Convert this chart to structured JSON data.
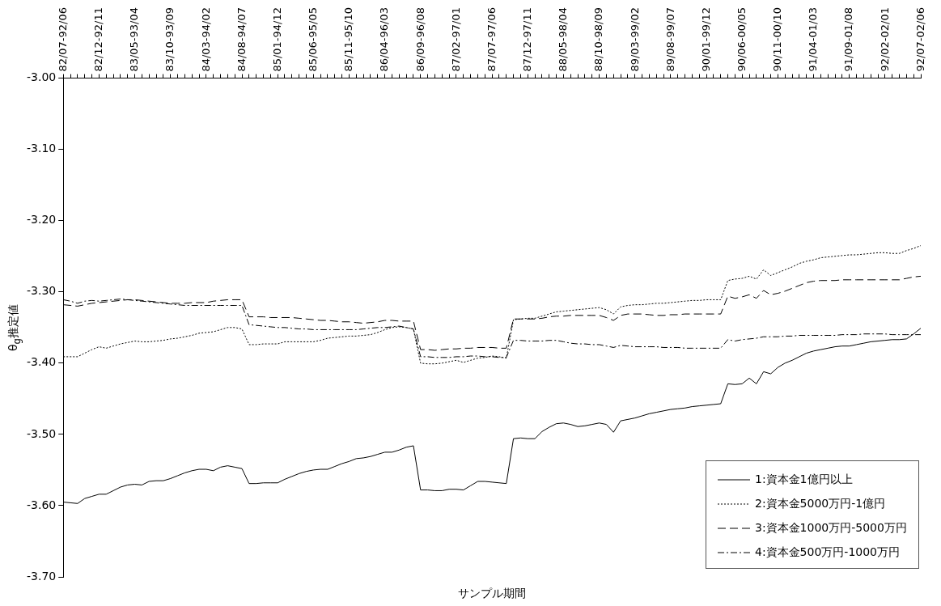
{
  "chart_data": {
    "type": "line",
    "xlabel": "サンプル期間",
    "ylabel": "θ$_{g}$推定値",
    "categories": [
      "82/07-92/06",
      null,
      null,
      null,
      null,
      "82/12-92/11",
      null,
      null,
      null,
      null,
      "83/05-93/04",
      null,
      null,
      null,
      null,
      "83/10-93/09",
      null,
      null,
      null,
      null,
      "84/03-94/02",
      null,
      null,
      null,
      null,
      "84/08-94/07",
      null,
      null,
      null,
      null,
      "85/01-94/12",
      null,
      null,
      null,
      null,
      "85/06-95/05",
      null,
      null,
      null,
      null,
      "85/11-95/10",
      null,
      null,
      null,
      null,
      "86/04-96/03",
      null,
      null,
      null,
      null,
      "86/09-96/08",
      null,
      null,
      null,
      null,
      "87/02-97/01",
      null,
      null,
      null,
      null,
      "87/07-97/06",
      null,
      null,
      null,
      null,
      "87/12-97/11",
      null,
      null,
      null,
      null,
      "88/05-98/04",
      null,
      null,
      null,
      null,
      "88/10-98/09",
      null,
      null,
      null,
      null,
      "89/03-99/02",
      null,
      null,
      null,
      null,
      "89/08-99/07",
      null,
      null,
      null,
      null,
      "90/01-99/12",
      null,
      null,
      null,
      null,
      "90/06-00/05",
      null,
      null,
      null,
      null,
      "90/11-00/10",
      null,
      null,
      null,
      null,
      "91/04-01/03",
      null,
      null,
      null,
      null,
      "91/09-01/08",
      null,
      null,
      null,
      null,
      "92/02-02/01",
      null,
      null,
      null,
      null,
      "92/07-02/06"
    ],
    "series": [
      {
        "name": "1:資本金1億円以上",
        "color": "#000000",
        "line_style": "solid",
        "values": [
          -3.595,
          -3.596,
          -3.597,
          -3.59,
          -3.587,
          -3.584,
          -3.584,
          -3.579,
          -3.574,
          -3.571,
          -3.57,
          -3.571,
          -3.566,
          -3.565,
          -3.565,
          -3.562,
          -3.558,
          -3.554,
          -3.551,
          -3.549,
          -3.549,
          -3.551,
          -3.546,
          -3.544,
          -3.546,
          -3.548,
          -3.569,
          -3.569,
          -3.568,
          -3.568,
          -3.568,
          -3.563,
          -3.559,
          -3.555,
          -3.552,
          -3.55,
          -3.549,
          -3.549,
          -3.545,
          -3.541,
          -3.538,
          -3.534,
          -3.533,
          -3.531,
          -3.528,
          -3.525,
          -3.525,
          -3.522,
          -3.518,
          -3.516,
          -3.578,
          -3.578,
          -3.579,
          -3.579,
          -3.577,
          -3.577,
          -3.578,
          -3.572,
          -3.566,
          -3.566,
          -3.567,
          -3.568,
          -3.569,
          -3.506,
          -3.505,
          -3.506,
          -3.506,
          -3.496,
          -3.49,
          -3.485,
          -3.484,
          -3.486,
          -3.489,
          -3.488,
          -3.486,
          -3.484,
          -3.486,
          -3.497,
          -3.481,
          -3.479,
          -3.477,
          -3.474,
          -3.471,
          -3.469,
          -3.467,
          -3.465,
          -3.464,
          -3.463,
          -3.461,
          -3.46,
          -3.459,
          -3.458,
          -3.457,
          -3.429,
          -3.43,
          -3.429,
          -3.421,
          -3.429,
          -3.412,
          -3.415,
          -3.406,
          -3.4,
          -3.396,
          -3.391,
          -3.386,
          -3.383,
          -3.381,
          -3.379,
          -3.377,
          -3.376,
          -3.376,
          -3.374,
          -3.372,
          -3.37,
          -3.369,
          -3.368,
          -3.367,
          -3.367,
          -3.366,
          -3.359,
          -3.351
        ]
      },
      {
        "name": "2:資本金5000万円-1億円",
        "color": "#000000",
        "line_style": "dotted",
        "values": [
          -3.391,
          -3.391,
          -3.391,
          -3.386,
          -3.381,
          -3.377,
          -3.379,
          -3.376,
          -3.373,
          -3.371,
          -3.369,
          -3.37,
          -3.37,
          -3.369,
          -3.368,
          -3.366,
          -3.365,
          -3.363,
          -3.361,
          -3.358,
          -3.357,
          -3.356,
          -3.353,
          -3.35,
          -3.35,
          -3.352,
          -3.374,
          -3.374,
          -3.373,
          -3.373,
          -3.373,
          -3.37,
          -3.37,
          -3.37,
          -3.37,
          -3.37,
          -3.368,
          -3.365,
          -3.364,
          -3.363,
          -3.362,
          -3.362,
          -3.361,
          -3.36,
          -3.357,
          -3.353,
          -3.35,
          -3.349,
          -3.35,
          -3.352,
          -3.4,
          -3.401,
          -3.401,
          -3.4,
          -3.398,
          -3.396,
          -3.399,
          -3.396,
          -3.393,
          -3.392,
          -3.39,
          -3.391,
          -3.393,
          -3.339,
          -3.338,
          -3.337,
          -3.337,
          -3.334,
          -3.331,
          -3.328,
          -3.327,
          -3.326,
          -3.325,
          -3.324,
          -3.323,
          -3.322,
          -3.325,
          -3.331,
          -3.321,
          -3.319,
          -3.318,
          -3.318,
          -3.317,
          -3.316,
          -3.316,
          -3.315,
          -3.314,
          -3.313,
          -3.312,
          -3.312,
          -3.311,
          -3.311,
          -3.311,
          -3.284,
          -3.282,
          -3.281,
          -3.278,
          -3.282,
          -3.269,
          -3.277,
          -3.273,
          -3.269,
          -3.265,
          -3.26,
          -3.257,
          -3.255,
          -3.252,
          -3.251,
          -3.25,
          -3.249,
          -3.248,
          -3.248,
          -3.247,
          -3.246,
          -3.245,
          -3.245,
          -3.246,
          -3.246,
          -3.242,
          -3.239,
          -3.235
        ]
      },
      {
        "name": "3:資本金1000万円-5000万円",
        "color": "#000000",
        "line_style": "dashed",
        "values": [
          -3.318,
          -3.319,
          -3.32,
          -3.318,
          -3.316,
          -3.315,
          -3.314,
          -3.313,
          -3.312,
          -3.311,
          -3.311,
          -3.312,
          -3.313,
          -3.314,
          -3.315,
          -3.316,
          -3.316,
          -3.316,
          -3.315,
          -3.315,
          -3.315,
          -3.313,
          -3.312,
          -3.311,
          -3.311,
          -3.311,
          -3.335,
          -3.335,
          -3.335,
          -3.336,
          -3.336,
          -3.336,
          -3.336,
          -3.337,
          -3.338,
          -3.339,
          -3.34,
          -3.34,
          -3.341,
          -3.342,
          -3.342,
          -3.343,
          -3.344,
          -3.343,
          -3.342,
          -3.34,
          -3.34,
          -3.341,
          -3.341,
          -3.341,
          -3.381,
          -3.381,
          -3.382,
          -3.381,
          -3.38,
          -3.38,
          -3.379,
          -3.379,
          -3.378,
          -3.378,
          -3.378,
          -3.379,
          -3.379,
          -3.338,
          -3.338,
          -3.338,
          -3.338,
          -3.337,
          -3.335,
          -3.334,
          -3.334,
          -3.333,
          -3.333,
          -3.333,
          -3.333,
          -3.333,
          -3.336,
          -3.34,
          -3.333,
          -3.331,
          -3.331,
          -3.331,
          -3.332,
          -3.333,
          -3.333,
          -3.332,
          -3.332,
          -3.331,
          -3.331,
          -3.331,
          -3.331,
          -3.331,
          -3.331,
          -3.306,
          -3.309,
          -3.307,
          -3.304,
          -3.309,
          -3.298,
          -3.304,
          -3.302,
          -3.299,
          -3.295,
          -3.291,
          -3.287,
          -3.285,
          -3.284,
          -3.284,
          -3.284,
          -3.283,
          -3.283,
          -3.283,
          -3.283,
          -3.283,
          -3.283,
          -3.283,
          -3.283,
          -3.283,
          -3.281,
          -3.279,
          -3.278
        ]
      },
      {
        "name": "4:資本金500万円-1000万円",
        "color": "#000000",
        "line_style": "dashdot",
        "values": [
          -3.311,
          -3.313,
          -3.316,
          -3.313,
          -3.312,
          -3.313,
          -3.312,
          -3.311,
          -3.31,
          -3.311,
          -3.312,
          -3.313,
          -3.314,
          -3.315,
          -3.316,
          -3.317,
          -3.318,
          -3.319,
          -3.319,
          -3.319,
          -3.319,
          -3.319,
          -3.319,
          -3.319,
          -3.319,
          -3.319,
          -3.346,
          -3.347,
          -3.348,
          -3.349,
          -3.35,
          -3.35,
          -3.351,
          -3.352,
          -3.352,
          -3.353,
          -3.353,
          -3.353,
          -3.353,
          -3.353,
          -3.353,
          -3.353,
          -3.352,
          -3.351,
          -3.35,
          -3.35,
          -3.349,
          -3.348,
          -3.35,
          -3.352,
          -3.391,
          -3.391,
          -3.392,
          -3.392,
          -3.392,
          -3.391,
          -3.391,
          -3.39,
          -3.39,
          -3.391,
          -3.391,
          -3.392,
          -3.392,
          -3.368,
          -3.368,
          -3.369,
          -3.369,
          -3.369,
          -3.368,
          -3.368,
          -3.37,
          -3.372,
          -3.373,
          -3.373,
          -3.374,
          -3.374,
          -3.376,
          -3.378,
          -3.375,
          -3.376,
          -3.377,
          -3.377,
          -3.377,
          -3.377,
          -3.378,
          -3.378,
          -3.378,
          -3.379,
          -3.379,
          -3.379,
          -3.379,
          -3.379,
          -3.379,
          -3.367,
          -3.369,
          -3.367,
          -3.366,
          -3.365,
          -3.363,
          -3.363,
          -3.363,
          -3.362,
          -3.362,
          -3.361,
          -3.361,
          -3.361,
          -3.361,
          -3.361,
          -3.361,
          -3.36,
          -3.36,
          -3.36,
          -3.359,
          -3.359,
          -3.359,
          -3.359,
          -3.36,
          -3.36,
          -3.36,
          -3.36,
          -3.36
        ]
      }
    ],
    "ylim": [
      -3.7,
      -3.0
    ],
    "yticks": [
      {
        "value": -3.0,
        "label": "-3.00"
      },
      {
        "value": -3.1,
        "label": "-3.10"
      },
      {
        "value": -3.2,
        "label": "-3.20"
      },
      {
        "value": -3.3,
        "label": "-3.30"
      },
      {
        "value": -3.4,
        "label": "-3.40"
      },
      {
        "value": -3.5,
        "label": "-3.50"
      },
      {
        "value": -3.6,
        "label": "-3.60"
      },
      {
        "value": -3.7,
        "label": "-3.70"
      }
    ],
    "legend": "bottom right"
  }
}
